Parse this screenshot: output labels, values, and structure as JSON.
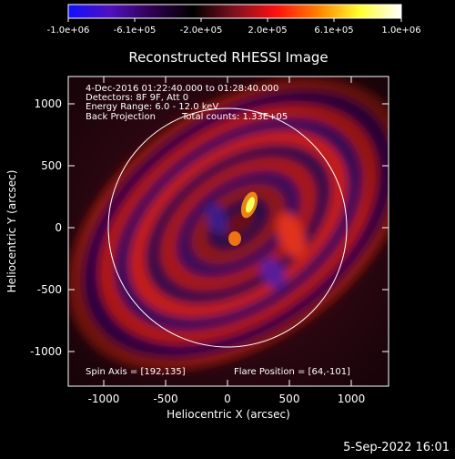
{
  "colorbar": {
    "ticks": [
      "-1.0e+06",
      "-6.1e+05",
      "-2.0e+05",
      "2.0e+05",
      "6.1e+05",
      "1.0e+06"
    ],
    "colors": [
      "#1010ff",
      "#5010c0",
      "#300050",
      "#000000",
      "#801020",
      "#ff1010",
      "#ff8000",
      "#ffff30",
      "#ffffff"
    ]
  },
  "plot": {
    "title": "Reconstructed RHESSI Image",
    "xlabel": "Heliocentric X (arcsec)",
    "ylabel": "Heliocentric Y (arcsec)",
    "xticks": [
      "-1000",
      "-500",
      "0",
      "500",
      "1000"
    ],
    "yticks": [
      "1000",
      "500",
      "0",
      "-500",
      "-1000"
    ],
    "annotations": {
      "time": "4-Dec-2016 01:22:40.000 to 01:28:40.000",
      "detectors": "Detectors: 8F 9F, Att 0",
      "energy": "Energy Range: 6.0 - 12.0 keV",
      "method": "Back Projection",
      "counts": "Total counts: 1.33E+05",
      "spin_axis": "Spin Axis = [192,135]",
      "flare_position": "Flare Position = [64,-101]"
    }
  },
  "timestamp": "5-Sep-2022 16:01"
}
